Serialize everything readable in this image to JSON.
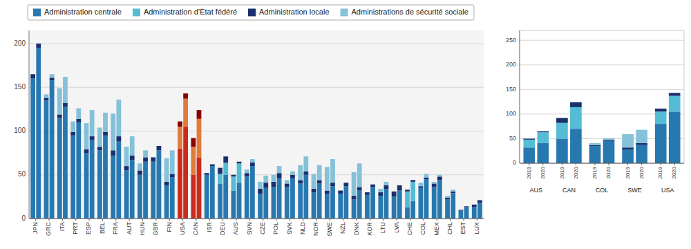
{
  "chart_data": [
    {
      "type": "bar",
      "stacked": true,
      "grid": true,
      "legend": "top",
      "categories": [
        "JPN",
        null,
        "GRC",
        null,
        "ITA",
        null,
        "PRT",
        null,
        "ESP",
        null,
        "BEL",
        null,
        "FRA",
        null,
        "AUT",
        null,
        "HUN",
        null,
        "GBR",
        null,
        "FIN",
        null,
        "USA",
        null,
        "CAN",
        null,
        "ISR",
        null,
        "DEU",
        null,
        "AUS",
        null,
        "SVN",
        null,
        "CZE",
        null,
        "POL",
        null,
        "SVK",
        null,
        "NLD",
        null,
        "NOR",
        null,
        "SWE",
        null,
        "NZL",
        null,
        "DNK",
        null,
        "KOR",
        null,
        "LTU",
        null,
        "LVA",
        null,
        "CHE",
        null,
        "COL",
        null,
        "MEX",
        null,
        "CHL",
        null,
        "EST",
        null,
        "LUX",
        null
      ],
      "ylim": [
        0,
        215
      ],
      "yticks": [
        0,
        50,
        100,
        150,
        200
      ],
      "series": [
        {
          "name": "Administration centrale",
          "color": "#2878b0",
          "values": [
            160,
            195,
            135,
            158,
            115,
            128,
            95,
            110,
            75,
            90,
            78,
            95,
            72,
            88,
            55,
            67,
            50,
            65,
            65,
            78,
            38,
            47,
            80,
            105,
            50,
            70,
            50,
            60,
            40,
            50,
            32,
            41,
            48,
            60,
            28,
            35,
            36,
            46,
            36,
            46,
            40,
            50,
            30,
            40,
            28,
            37,
            28,
            37,
            22,
            32,
            27,
            36,
            26,
            34,
            25,
            32,
            13,
            20,
            35,
            45,
            36,
            44,
            22,
            29,
            9,
            13,
            13,
            18
          ],
          "colors": [
            "#2878b0",
            "#2878b0",
            "#2878b0",
            "#2878b0",
            "#2878b0",
            "#2878b0",
            "#2878b0",
            "#2878b0",
            "#2878b0",
            "#2878b0",
            "#2878b0",
            "#2878b0",
            "#2878b0",
            "#2878b0",
            "#2878b0",
            "#2878b0",
            "#2878b0",
            "#2878b0",
            "#2878b0",
            "#2878b0",
            "#2878b0",
            "#2878b0",
            "#cc2b1c",
            "#cc2b1c",
            "#cc2b1c",
            "#cc2b1c",
            "#2878b0",
            "#2878b0",
            "#2878b0",
            "#2878b0",
            "#2878b0",
            "#2878b0",
            "#2878b0",
            "#2878b0",
            "#2878b0",
            "#2878b0",
            "#2878b0",
            "#2878b0",
            "#2878b0",
            "#2878b0",
            "#2878b0",
            "#2878b0",
            "#2878b0",
            "#2878b0",
            "#2878b0",
            "#2878b0",
            "#2878b0",
            "#2878b0",
            "#2878b0",
            "#2878b0",
            "#2878b0",
            "#2878b0",
            "#2878b0",
            "#2878b0",
            "#2878b0",
            "#2878b0",
            "#2878b0",
            "#2878b0",
            "#2878b0",
            "#2878b0",
            "#2878b0",
            "#2878b0",
            "#2878b0",
            "#2878b0",
            "#2878b0",
            "#2878b0",
            "#2878b0",
            "#2878b0"
          ]
        },
        {
          "name": "Administration d’État fédéré",
          "color": "#54bcd4",
          "values": [
            0,
            0,
            0,
            0,
            0,
            0,
            0,
            0,
            0,
            0,
            0,
            0,
            0,
            0,
            0,
            0,
            0,
            0,
            0,
            0,
            0,
            0,
            25,
            32,
            32,
            44,
            0,
            0,
            11,
            14,
            16,
            22,
            0,
            0,
            0,
            0,
            0,
            0,
            0,
            0,
            0,
            0,
            0,
            0,
            0,
            0,
            0,
            0,
            0,
            0,
            0,
            0,
            0,
            0,
            0,
            0,
            18,
            22,
            0,
            0,
            0,
            0,
            0,
            0,
            0,
            0,
            0,
            0
          ],
          "colors": [
            "#54bcd4",
            "#54bcd4",
            "#54bcd4",
            "#54bcd4",
            "#54bcd4",
            "#54bcd4",
            "#54bcd4",
            "#54bcd4",
            "#54bcd4",
            "#54bcd4",
            "#54bcd4",
            "#54bcd4",
            "#54bcd4",
            "#54bcd4",
            "#54bcd4",
            "#54bcd4",
            "#54bcd4",
            "#54bcd4",
            "#54bcd4",
            "#54bcd4",
            "#54bcd4",
            "#54bcd4",
            "#e07b39",
            "#e07b39",
            "#e07b39",
            "#e07b39",
            "#54bcd4",
            "#54bcd4",
            "#54bcd4",
            "#54bcd4",
            "#54bcd4",
            "#54bcd4",
            "#54bcd4",
            "#54bcd4",
            "#54bcd4",
            "#54bcd4",
            "#54bcd4",
            "#54bcd4",
            "#54bcd4",
            "#54bcd4",
            "#54bcd4",
            "#54bcd4",
            "#54bcd4",
            "#54bcd4",
            "#54bcd4",
            "#54bcd4",
            "#54bcd4",
            "#54bcd4",
            "#54bcd4",
            "#54bcd4",
            "#54bcd4",
            "#54bcd4",
            "#54bcd4",
            "#54bcd4",
            "#54bcd4",
            "#54bcd4",
            "#54bcd4",
            "#54bcd4",
            "#54bcd4",
            "#54bcd4",
            "#54bcd4",
            "#54bcd4",
            "#54bcd4",
            "#54bcd4",
            "#54bcd4",
            "#54bcd4",
            "#54bcd4",
            "#54bcd4"
          ]
        },
        {
          "name": "Administration locale",
          "color": "#1a2f6e",
          "values": [
            5,
            5,
            3,
            3,
            4,
            4,
            4,
            4,
            4,
            4,
            4,
            4,
            6,
            6,
            5,
            5,
            5,
            5,
            5,
            5,
            4,
            4,
            6,
            6,
            10,
            10,
            2,
            2,
            7,
            7,
            2,
            2,
            4,
            4,
            6,
            6,
            6,
            6,
            4,
            4,
            4,
            4,
            4,
            4,
            4,
            4,
            4,
            4,
            4,
            4,
            3,
            3,
            4,
            4,
            6,
            6,
            2,
            2,
            2,
            2,
            4,
            4,
            2,
            2,
            1,
            1,
            3,
            3
          ],
          "colors": [
            "#1a2f6e",
            "#1a2f6e",
            "#1a2f6e",
            "#1a2f6e",
            "#1a2f6e",
            "#1a2f6e",
            "#1a2f6e",
            "#1a2f6e",
            "#1a2f6e",
            "#1a2f6e",
            "#1a2f6e",
            "#1a2f6e",
            "#1a2f6e",
            "#1a2f6e",
            "#1a2f6e",
            "#1a2f6e",
            "#1a2f6e",
            "#1a2f6e",
            "#1a2f6e",
            "#1a2f6e",
            "#1a2f6e",
            "#1a2f6e",
            "#8b0000",
            "#8b0000",
            "#8b0000",
            "#8b0000",
            "#1a2f6e",
            "#1a2f6e",
            "#1a2f6e",
            "#1a2f6e",
            "#1a2f6e",
            "#1a2f6e",
            "#1a2f6e",
            "#1a2f6e",
            "#1a2f6e",
            "#1a2f6e",
            "#1a2f6e",
            "#1a2f6e",
            "#1a2f6e",
            "#1a2f6e",
            "#1a2f6e",
            "#1a2f6e",
            "#1a2f6e",
            "#1a2f6e",
            "#1a2f6e",
            "#1a2f6e",
            "#1a2f6e",
            "#1a2f6e",
            "#1a2f6e",
            "#1a2f6e",
            "#1a2f6e",
            "#1a2f6e",
            "#1a2f6e",
            "#1a2f6e",
            "#1a2f6e",
            "#1a2f6e",
            "#1a2f6e",
            "#1a2f6e",
            "#1a2f6e",
            "#1a2f6e",
            "#1a2f6e",
            "#1a2f6e",
            "#1a2f6e",
            "#1a2f6e",
            "#1a2f6e",
            "#1a2f6e",
            "#1a2f6e",
            "#1a2f6e"
          ]
        },
        {
          "name": "Administrations de sécurité sociale",
          "color": "#85c1d8",
          "values": [
            0,
            0,
            4,
            4,
            30,
            30,
            12,
            12,
            30,
            30,
            22,
            22,
            42,
            42,
            22,
            22,
            8,
            8,
            0,
            0,
            27,
            27,
            0,
            0,
            0,
            0,
            0,
            0,
            0,
            0,
            0,
            0,
            4,
            4,
            8,
            8,
            8,
            8,
            4,
            4,
            17,
            17,
            17,
            17,
            27,
            27,
            0,
            0,
            27,
            27,
            0,
            0,
            4,
            4,
            0,
            0,
            0,
            0,
            4,
            4,
            2,
            2,
            2,
            2,
            0,
            0,
            0,
            0
          ],
          "colors": [
            "#85c1d8",
            "#85c1d8",
            "#85c1d8",
            "#85c1d8",
            "#85c1d8",
            "#85c1d8",
            "#85c1d8",
            "#85c1d8",
            "#85c1d8",
            "#85c1d8",
            "#85c1d8",
            "#85c1d8",
            "#85c1d8",
            "#85c1d8",
            "#85c1d8",
            "#85c1d8",
            "#85c1d8",
            "#85c1d8",
            "#85c1d8",
            "#85c1d8",
            "#85c1d8",
            "#85c1d8",
            "#ff9999",
            "#ff9999",
            "#ff9999",
            "#ff9999",
            "#85c1d8",
            "#85c1d8",
            "#85c1d8",
            "#85c1d8",
            "#85c1d8",
            "#85c1d8",
            "#85c1d8",
            "#85c1d8",
            "#85c1d8",
            "#85c1d8",
            "#85c1d8",
            "#85c1d8",
            "#85c1d8",
            "#85c1d8",
            "#85c1d8",
            "#85c1d8",
            "#85c1d8",
            "#85c1d8",
            "#85c1d8",
            "#85c1d8",
            "#85c1d8",
            "#85c1d8",
            "#85c1d8",
            "#85c1d8",
            "#85c1d8",
            "#85c1d8",
            "#85c1d8",
            "#85c1d8",
            "#85c1d8",
            "#85c1d8",
            "#85c1d8",
            "#85c1d8",
            "#85c1d8",
            "#85c1d8",
            "#85c1d8",
            "#85c1d8",
            "#85c1d8",
            "#85c1d8",
            "#85c1d8",
            "#85c1d8",
            "#85c1d8",
            "#85c1d8"
          ]
        }
      ]
    },
    {
      "type": "bar",
      "stacked": true,
      "grid": true,
      "categories": [
        "2019",
        "2020",
        "2019",
        "2020",
        "2019",
        "2020",
        "2019",
        "2020",
        "2019",
        "2020"
      ],
      "annotations": [
        "AUS",
        "CAN",
        "COL",
        "SWE",
        "USA"
      ],
      "ylim": [
        0,
        270
      ],
      "yticks": [
        0,
        50,
        100,
        150,
        200,
        250
      ],
      "series": [
        {
          "color": "#2878b0",
          "values": [
            32,
            41,
            50,
            70,
            35,
            45,
            28,
            37,
            80,
            105
          ]
        },
        {
          "color": "#54bcd4",
          "values": [
            16,
            22,
            32,
            44,
            0,
            0,
            0,
            0,
            25,
            32
          ]
        },
        {
          "color": "#1a2f6e",
          "values": [
            2,
            2,
            10,
            10,
            2,
            2,
            4,
            4,
            6,
            6
          ]
        },
        {
          "color": "#85c1d8",
          "values": [
            0,
            0,
            0,
            0,
            4,
            4,
            27,
            27,
            0,
            0
          ]
        }
      ]
    }
  ]
}
